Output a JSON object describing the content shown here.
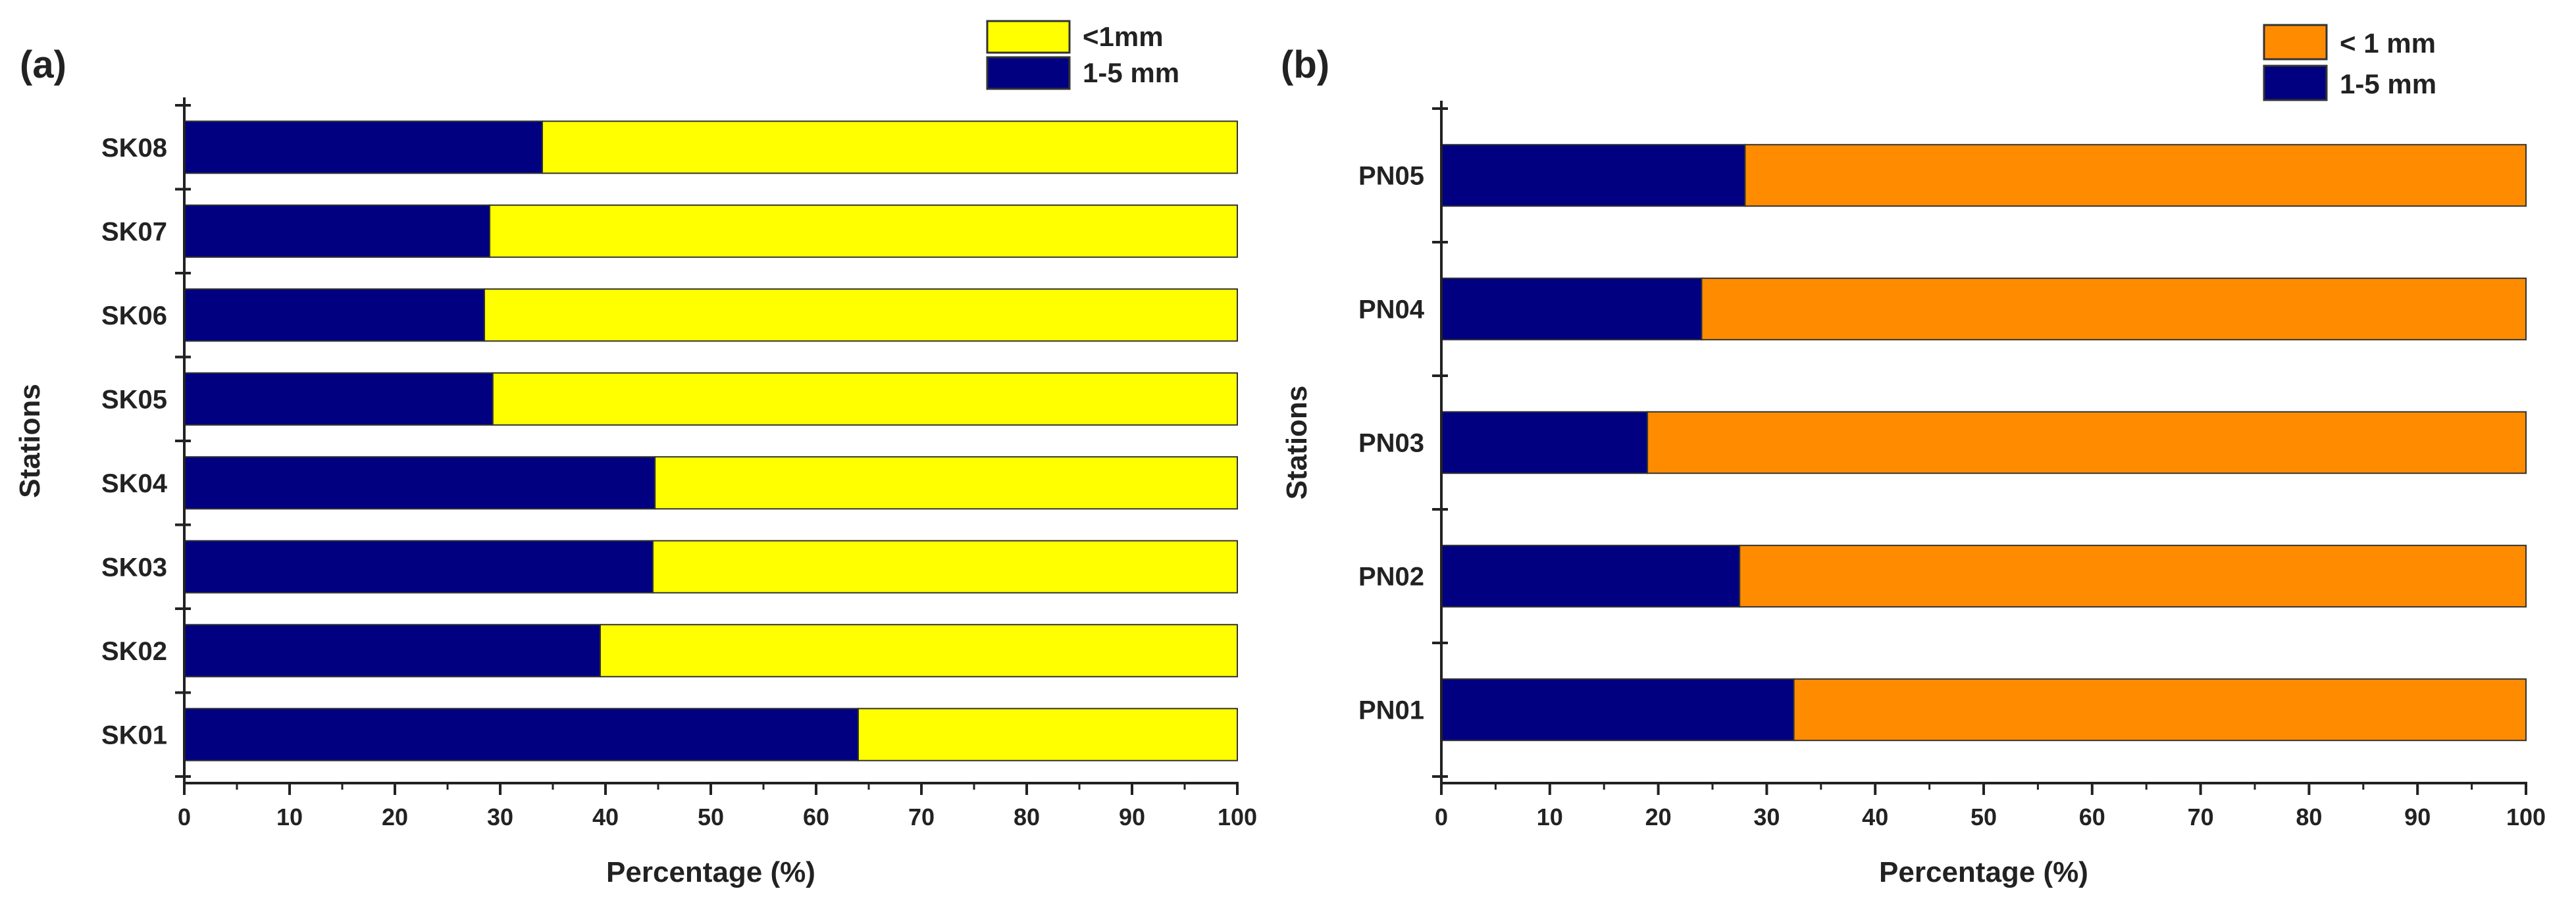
{
  "chart_data": [
    {
      "type": "bar",
      "panel": "(a)",
      "orientation": "horizontal",
      "stacked": true,
      "categories": [
        "SK08",
        "SK07",
        "SK06",
        "SK05",
        "SK04",
        "SK03",
        "SK02",
        "SK01"
      ],
      "series": [
        {
          "name": "1-5 mm",
          "color": "#000080",
          "values": [
            34,
            29,
            28.5,
            29.3,
            44.7,
            44.5,
            39.5,
            64
          ]
        },
        {
          "name": "<1mm",
          "color": "#ffff00",
          "values": [
            66,
            71,
            71.5,
            70.7,
            55.3,
            55.5,
            60.5,
            36
          ]
        }
      ],
      "legend_order": [
        "<1mm",
        "1-5 mm"
      ],
      "xlabel": "Percentage (%)",
      "ylabel": "Stations",
      "xlim": [
        0,
        100
      ],
      "xticks": [
        "0",
        "10",
        "20",
        "30",
        "40",
        "50",
        "60",
        "70",
        "80",
        "90",
        "100"
      ],
      "grid": false,
      "legend_position": "top-right"
    },
    {
      "type": "bar",
      "panel": "(b)",
      "orientation": "horizontal",
      "stacked": true,
      "categories": [
        "PN05",
        "PN04",
        "PN03",
        "PN02",
        "PN01"
      ],
      "series": [
        {
          "name": "1-5 mm",
          "color": "#000080",
          "values": [
            28,
            24,
            19,
            27.5,
            32.5
          ]
        },
        {
          "name": "< 1 mm",
          "color": "#ff8c00",
          "values": [
            72,
            76,
            81,
            72.5,
            67.5
          ]
        }
      ],
      "legend_order": [
        "< 1 mm",
        "1-5 mm"
      ],
      "xlabel": "Percentage (%)",
      "ylabel": "Stations",
      "xlim": [
        0,
        100
      ],
      "xticks": [
        "0",
        "10",
        "20",
        "30",
        "40",
        "50",
        "60",
        "70",
        "80",
        "90",
        "100"
      ],
      "grid": false,
      "legend_position": "top-right"
    }
  ]
}
